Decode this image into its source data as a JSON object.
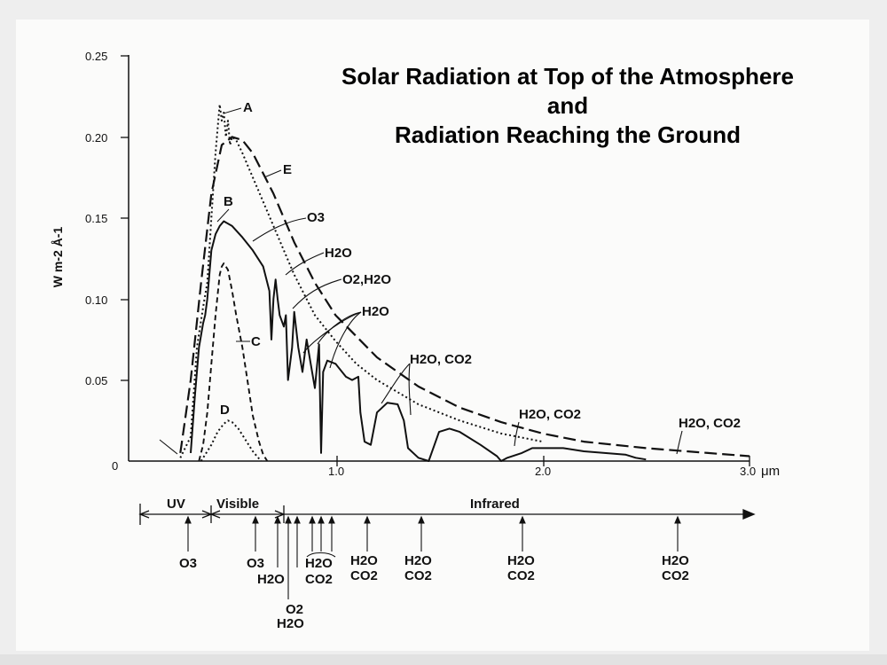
{
  "title": {
    "line1": "Solar Radiation at Top of the Atmosphere",
    "line2": "and",
    "line3": "Radiation Reaching the Ground"
  },
  "chart_data": {
    "type": "line",
    "title": "Solar Radiation at Top of the Atmosphere and Radiation Reaching the Ground",
    "ylabel": "W m-2 Å-1",
    "xunit": "μm",
    "xlim": [
      0,
      3.0
    ],
    "ylim": [
      0,
      0.25
    ],
    "yticks": [
      "0.25",
      "0.20",
      "0.15",
      "0.10",
      "0.05",
      "0"
    ],
    "xticks": [
      "1.0",
      "2.0",
      "3.0"
    ],
    "grid": false,
    "series": [
      {
        "name": "A",
        "style": "dotted",
        "x": [
          0.25,
          0.3,
          0.33,
          0.36,
          0.38,
          0.4,
          0.42,
          0.43,
          0.44,
          0.45,
          0.46,
          0.47,
          0.48,
          0.49,
          0.5,
          0.52,
          0.55,
          0.6,
          0.65,
          0.7,
          0.8,
          0.9,
          1.0,
          1.1,
          1.2,
          1.4,
          1.6,
          1.8,
          2.0
        ],
        "values": [
          0.002,
          0.015,
          0.07,
          0.095,
          0.11,
          0.15,
          0.19,
          0.205,
          0.22,
          0.21,
          0.215,
          0.2,
          0.21,
          0.195,
          0.2,
          0.198,
          0.19,
          0.175,
          0.16,
          0.145,
          0.115,
          0.09,
          0.074,
          0.06,
          0.05,
          0.035,
          0.025,
          0.017,
          0.012
        ]
      },
      {
        "name": "E",
        "style": "dashed",
        "x": [
          0.25,
          0.3,
          0.35,
          0.4,
          0.45,
          0.5,
          0.55,
          0.6,
          0.7,
          0.8,
          0.9,
          1.0,
          1.2,
          1.4,
          1.6,
          1.8,
          2.0,
          2.2,
          2.5,
          2.8,
          3.0
        ],
        "values": [
          0.005,
          0.05,
          0.11,
          0.165,
          0.195,
          0.2,
          0.198,
          0.19,
          0.165,
          0.135,
          0.11,
          0.09,
          0.064,
          0.046,
          0.033,
          0.024,
          0.017,
          0.012,
          0.008,
          0.005,
          0.003
        ]
      },
      {
        "name": "B",
        "style": "solid",
        "x": [
          0.3,
          0.32,
          0.34,
          0.36,
          0.37,
          0.38,
          0.4,
          0.42,
          0.44,
          0.46,
          0.5,
          0.55,
          0.6,
          0.65,
          0.68,
          0.69,
          0.7,
          0.71,
          0.72,
          0.73,
          0.75,
          0.76,
          0.77,
          0.79,
          0.8,
          0.82,
          0.84,
          0.86,
          0.88,
          0.9,
          0.92,
          0.93,
          0.94,
          0.96,
          1.0,
          1.05,
          1.08,
          1.11,
          1.12,
          1.14,
          1.17,
          1.2,
          1.25,
          1.3,
          1.33,
          1.35,
          1.4,
          1.45,
          1.5,
          1.55,
          1.6,
          1.7,
          1.78,
          1.8,
          1.83,
          1.9,
          1.95,
          2.0,
          2.1,
          2.2,
          2.3,
          2.4,
          2.45,
          2.5
        ],
        "values": [
          0.005,
          0.04,
          0.07,
          0.085,
          0.09,
          0.1,
          0.13,
          0.14,
          0.145,
          0.148,
          0.145,
          0.138,
          0.13,
          0.12,
          0.105,
          0.075,
          0.1,
          0.112,
          0.1,
          0.09,
          0.083,
          0.09,
          0.05,
          0.07,
          0.092,
          0.07,
          0.055,
          0.075,
          0.06,
          0.045,
          0.072,
          0.005,
          0.055,
          0.062,
          0.06,
          0.052,
          0.05,
          0.052,
          0.03,
          0.012,
          0.01,
          0.03,
          0.036,
          0.035,
          0.025,
          0.008,
          0.002,
          0.0,
          0.018,
          0.02,
          0.018,
          0.01,
          0.003,
          0.0,
          0.002,
          0.005,
          0.008,
          0.008,
          0.008,
          0.006,
          0.005,
          0.004,
          0.002,
          0.001
        ]
      },
      {
        "name": "C",
        "style": "short-dashed",
        "x": [
          0.34,
          0.36,
          0.38,
          0.4,
          0.42,
          0.44,
          0.45,
          0.46,
          0.48,
          0.5,
          0.52,
          0.55,
          0.58,
          0.6,
          0.63,
          0.65,
          0.67
        ],
        "values": [
          0.0,
          0.01,
          0.03,
          0.06,
          0.09,
          0.115,
          0.12,
          0.122,
          0.118,
          0.105,
          0.09,
          0.07,
          0.045,
          0.028,
          0.012,
          0.004,
          0.0
        ]
      },
      {
        "name": "D",
        "style": "dotted",
        "x": [
          0.35,
          0.4,
          0.43,
          0.46,
          0.48,
          0.5,
          0.53,
          0.56,
          0.6,
          0.64
        ],
        "values": [
          0.0,
          0.01,
          0.018,
          0.023,
          0.025,
          0.024,
          0.02,
          0.014,
          0.006,
          0.0
        ]
      }
    ],
    "curve_labels": [
      "A",
      "B",
      "C",
      "D",
      "E"
    ],
    "annotations": [
      {
        "label": "O3"
      },
      {
        "label": "H2O"
      },
      {
        "label": "O2,H2O"
      },
      {
        "label": "H2O"
      },
      {
        "label": "H2O, CO2"
      },
      {
        "label": "H2O, CO2"
      },
      {
        "label": "H2O, CO2"
      }
    ],
    "band_axis": {
      "regions": [
        "UV",
        "Visible",
        "Infrared"
      ],
      "absorber_labels": [
        "O3",
        "O3",
        "H2O",
        "O2",
        "H2O",
        "H2O",
        "CO2",
        "H2O",
        "CO2",
        "H2O",
        "CO2",
        "H2O",
        "CO2",
        "H2O",
        "CO2"
      ]
    }
  }
}
